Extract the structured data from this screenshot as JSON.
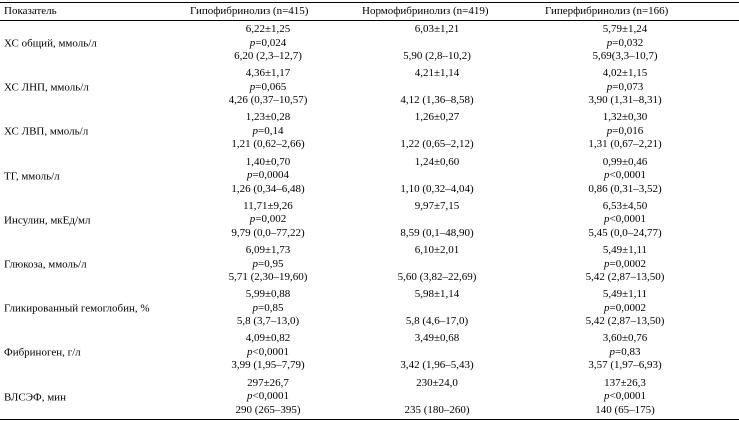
{
  "header": [
    "Показатель",
    "Гипофибринолиз (n=415)",
    "Нормофибринолиз (n=419)",
    "Гиперфибринолиз (n=166)"
  ],
  "rows": [
    {
      "label": "ХС общий, ммоль/л",
      "cells": [
        {
          "mean": "6,22±1,25",
          "p": "p=0,024",
          "median": "6,20 (2,3–12,7)"
        },
        {
          "mean": "6,03±1,21",
          "median": "5,90 (2,8–10,2)"
        },
        {
          "mean": "5,79±1,24",
          "p": "p=0,032",
          "median": "5,69(3,3–10,7)"
        }
      ]
    },
    {
      "label": "ХС ЛНП, ммоль/л",
      "cells": [
        {
          "mean": "4,36±1,17",
          "p": "p=0,065",
          "median": "4,26 (0,37–10,57)"
        },
        {
          "mean": "4,21±1,14",
          "median": "4,12 (1,36–8,58)"
        },
        {
          "mean": "4,02±1,15",
          "p": "p=0,073",
          "median": "3,90 (1,31–8,31)"
        }
      ]
    },
    {
      "label": "ХС ЛВП, ммоль/л",
      "cells": [
        {
          "mean": "1,23±0,28",
          "p": "p=0,14",
          "median": "1,21 (0,62–2,66)"
        },
        {
          "mean": "1,26±0,27",
          "median": "1,22 (0,65–2,12)"
        },
        {
          "mean": "1,32±0,30",
          "p": "p=0,016",
          "median": "1,31 (0,67–2,21)"
        }
      ]
    },
    {
      "label": "ТГ, ммоль/л",
      "cells": [
        {
          "mean": "1,40±0,70",
          "p": "p=0,0004",
          "median": "1,26 (0,34–6,48)"
        },
        {
          "mean": "1,24±0,60",
          "median": "1,10 (0,32–4,04)"
        },
        {
          "mean": "0,99±0,46",
          "p": "p<0,0001",
          "median": "0,86 (0,31–3,52)"
        }
      ]
    },
    {
      "label": "Инсулин, мкЕд/мл",
      "cells": [
        {
          "mean": "11,71±9,26",
          "p": "p=0,002",
          "median": "9,79 (0,0–77,22)"
        },
        {
          "mean": "9,97±7,15",
          "median": "8,59 (0,1–48,90)"
        },
        {
          "mean": "6,53±4,50",
          "p": "p<0,0001",
          "median": "5,45 (0,0–24,77)"
        }
      ]
    },
    {
      "label": "Глюкоза, ммоль/л",
      "cells": [
        {
          "mean": "6,09±1,73",
          "p": "p=0,95",
          "median": "5,71 (2,30–19,60)"
        },
        {
          "mean": "6,10±2,01",
          "median": "5,60 (3,82–22,69)"
        },
        {
          "mean": "5,49±1,11",
          "p": "p=0,0002",
          "median": "5,42 (2,87–13,50)"
        }
      ]
    },
    {
      "label": "Гликированный гемоглобин, %",
      "cells": [
        {
          "mean": "5,99±0,88",
          "p": "p=0,85",
          "median": "5,8 (3,7–13,0)"
        },
        {
          "mean": "5,98±1,14",
          "median": "5,8 (4,6–17,0)"
        },
        {
          "mean": "5,49±1,11",
          "p": "p=0,0002",
          "median": "5,42 (2,87–13,50)"
        }
      ]
    },
    {
      "label": "Фибриноген, г/л",
      "cells": [
        {
          "mean": "4,09±0,82",
          "p": "p<0,0001",
          "median": "3,99 (1,95–7,79)"
        },
        {
          "mean": "3,49±0,68",
          "median": "3,42 (1,96–5,43)"
        },
        {
          "mean": "3,60±0,76",
          "p": "p=0,83",
          "median": "3,57 (1,97–6,93)"
        }
      ]
    },
    {
      "label": "ВЛСЭФ, мин",
      "cells": [
        {
          "mean": "297±26,7",
          "p": "p<0,0001",
          "median": "290 (265–395)"
        },
        {
          "mean": "230±24,0",
          "median": "235 (180–260)"
        },
        {
          "mean": "137±26,3",
          "p": "p<0,0001",
          "median": "140 (65–175)"
        }
      ]
    }
  ]
}
